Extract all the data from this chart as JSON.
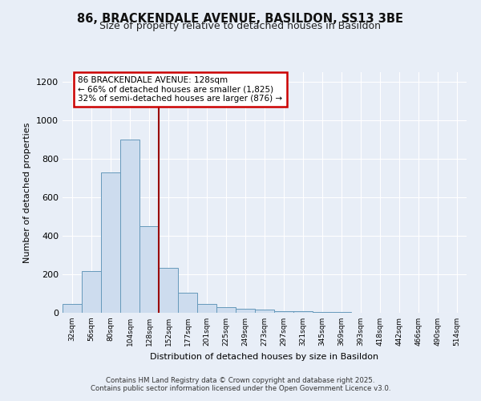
{
  "title_line1": "86, BRACKENDALE AVENUE, BASILDON, SS13 3BE",
  "title_line2": "Size of property relative to detached houses in Basildon",
  "xlabel": "Distribution of detached houses by size in Basildon",
  "ylabel": "Number of detached properties",
  "bar_labels": [
    "32sqm",
    "56sqm",
    "80sqm",
    "104sqm",
    "128sqm",
    "152sqm",
    "177sqm",
    "201sqm",
    "225sqm",
    "249sqm",
    "273sqm",
    "297sqm",
    "321sqm",
    "345sqm",
    "369sqm",
    "393sqm",
    "418sqm",
    "442sqm",
    "466sqm",
    "490sqm",
    "514sqm"
  ],
  "bar_values": [
    45,
    215,
    730,
    900,
    450,
    235,
    105,
    45,
    30,
    20,
    15,
    10,
    8,
    5,
    3,
    2,
    1,
    1,
    0,
    0,
    0
  ],
  "bar_color": "#cddcee",
  "bar_edge_color": "#6699bb",
  "vline_color": "#990000",
  "annotation_text": "86 BRACKENDALE AVENUE: 128sqm\n← 66% of detached houses are smaller (1,825)\n32% of semi-detached houses are larger (876) →",
  "annotation_box_color": "white",
  "annotation_box_edge": "#cc0000",
  "ylim": [
    0,
    1250
  ],
  "yticks": [
    0,
    200,
    400,
    600,
    800,
    1000,
    1200
  ],
  "plot_bg_color": "#e8eef7",
  "fig_bg_color": "#e8eef7",
  "footer_line1": "Contains HM Land Registry data © Crown copyright and database right 2025.",
  "footer_line2": "Contains public sector information licensed under the Open Government Licence v3.0.",
  "grid_color": "white"
}
